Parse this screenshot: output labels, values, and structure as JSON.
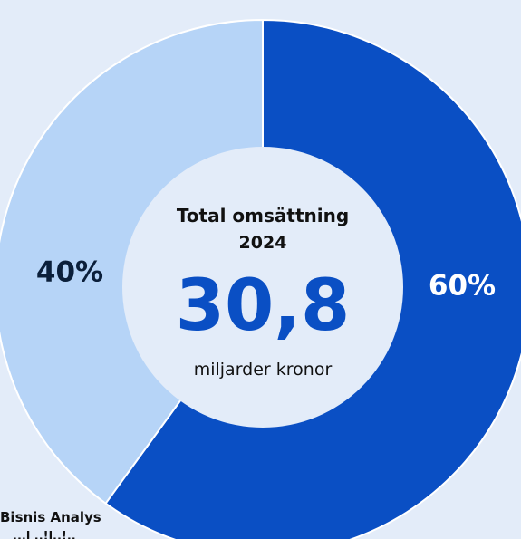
{
  "chart_data": {
    "type": "pie",
    "donut": true,
    "slices": [
      {
        "label": "60%",
        "value": 60,
        "color": "#0a4fc4",
        "label_color": "#ffffff"
      },
      {
        "label": "40%",
        "value": 40,
        "color": "#b6d4f7",
        "label_color": "#0b1f3a"
      }
    ],
    "center": {
      "title_line1": "Total omsättning",
      "title_line2": "2024",
      "value": "30,8",
      "unit": "miljarder kronor",
      "value_color": "#0a4fc4"
    },
    "background": "#e3ecf9"
  },
  "source": {
    "line1": "Bisnis Analys",
    "line2": "...l ..!l..!.."
  }
}
